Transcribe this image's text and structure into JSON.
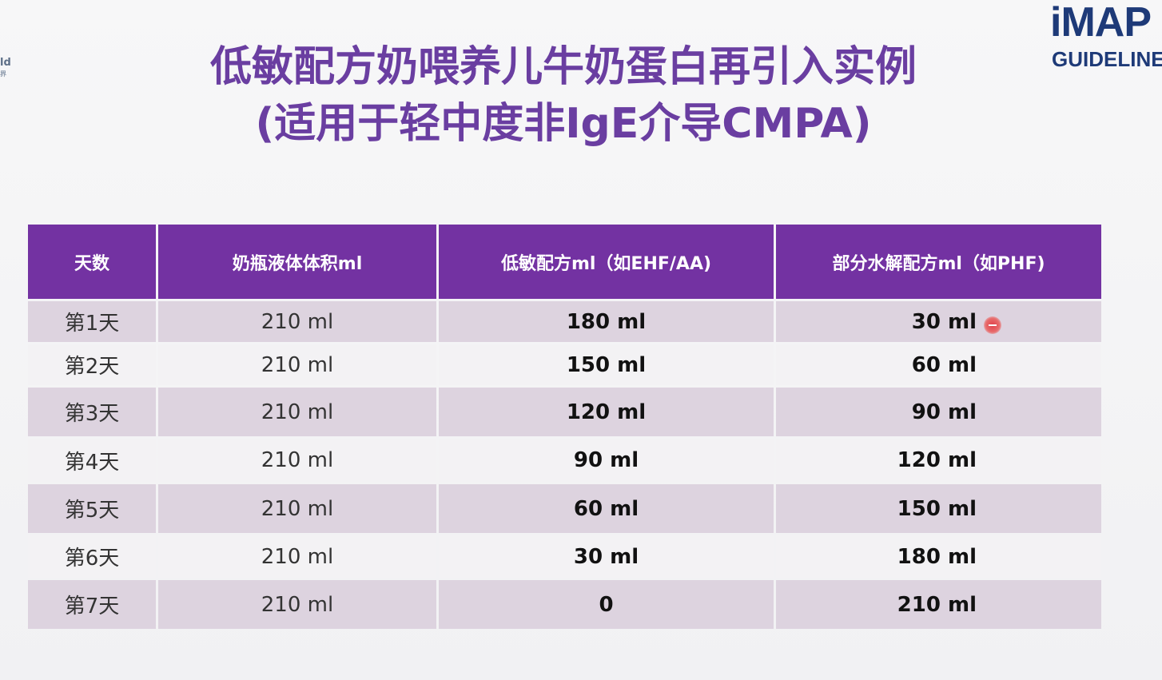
{
  "left_logo": {
    "text": "ld",
    "sub": "界"
  },
  "logo": {
    "word": "iMAP",
    "guide": "GUIDELINE"
  },
  "title": {
    "line1": "低敏配方奶喂养儿牛奶蛋白再引入实例",
    "line2": "(适用于轻中度非IgE介导CMPA)"
  },
  "table": {
    "headers": [
      "天数",
      "奶瓶液体体积ml",
      "低敏配方ml（如EHF/AA)",
      "部分水解配方ml（如PHF)"
    ],
    "rows": [
      {
        "day": "第1天",
        "volume": "210 ml",
        "hypo": "180 ml",
        "phf": "30 ml"
      },
      {
        "day": "第2天",
        "volume": "210 ml",
        "hypo": "150 ml",
        "phf": "60 ml"
      },
      {
        "day": "第3天",
        "volume": "210 ml",
        "hypo": "120 ml",
        "phf": "90 ml"
      },
      {
        "day": "第4天",
        "volume": "210 ml",
        "hypo": "90 ml",
        "phf": "120 ml"
      },
      {
        "day": "第5天",
        "volume": "210 ml",
        "hypo": "60 ml",
        "phf": "150 ml"
      },
      {
        "day": "第6天",
        "volume": "210 ml",
        "hypo": "30 ml",
        "phf": "180 ml"
      },
      {
        "day": "第7天",
        "volume": "210 ml",
        "hypo": "0",
        "phf": "210 ml"
      }
    ]
  },
  "colors": {
    "header_bg": "#7332a2",
    "title": "#6a3ea1",
    "row_odd": "#ddd3df",
    "row_even": "#f3f2f4",
    "logo": "#1e3a78"
  }
}
